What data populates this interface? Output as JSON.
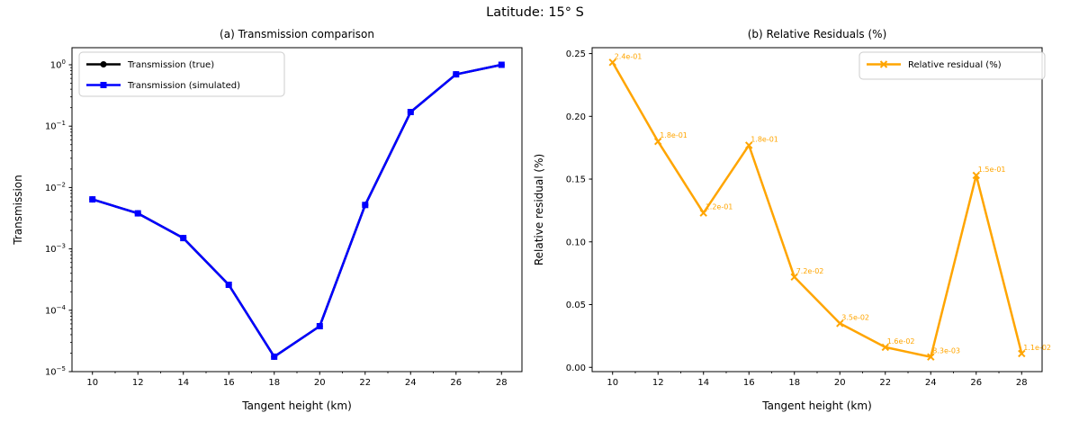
{
  "figure": {
    "suptitle": "Latitude: 15° S",
    "background_color": "#ffffff",
    "accent_blue": "#0000ff",
    "accent_orange": "#ffa500",
    "accent_black": "#000000"
  },
  "chart_data": [
    {
      "type": "line",
      "title": "(a) Transmission comparison",
      "xlabel": "Tangent height (km)",
      "ylabel": "Transmission",
      "x": [
        10,
        12,
        14,
        16,
        18,
        20,
        22,
        24,
        26,
        28
      ],
      "xticks": [
        10,
        12,
        14,
        16,
        18,
        20,
        22,
        24,
        26,
        28
      ],
      "xminorticks": [
        11,
        13,
        15,
        17,
        19,
        21,
        23,
        25,
        27
      ],
      "xlim": [
        9.1,
        28.9
      ],
      "yscale": "log",
      "ylim": [
        1e-05,
        1.9
      ],
      "ytick_exponents": [
        0,
        -1,
        -2,
        -3,
        -4,
        -5
      ],
      "grid": false,
      "legend_position": "upper-left",
      "series": [
        {
          "name": "Transmission (true)",
          "color": "#000000",
          "marker": "circle",
          "values": [
            0.0064,
            0.0038,
            0.0015,
            0.00026,
            1.75e-05,
            5.5e-05,
            0.0052,
            0.17,
            0.7,
            1.0
          ]
        },
        {
          "name": "Transmission (simulated)",
          "color": "#0000ff",
          "marker": "square",
          "values": [
            0.0064,
            0.0038,
            0.0015,
            0.00026,
            1.75e-05,
            5.5e-05,
            0.0052,
            0.17,
            0.7,
            1.0
          ]
        }
      ]
    },
    {
      "type": "line",
      "title": "(b) Relative Residuals (%)",
      "xlabel": "Tangent height (km)",
      "ylabel": "Relative residual (%)",
      "x": [
        10,
        12,
        14,
        16,
        18,
        20,
        22,
        24,
        26,
        28
      ],
      "xticks": [
        10,
        12,
        14,
        16,
        18,
        20,
        22,
        24,
        26,
        28
      ],
      "xminorticks": [
        11,
        13,
        15,
        17,
        19,
        21,
        23,
        25,
        27
      ],
      "xlim": [
        9.1,
        28.9
      ],
      "yscale": "linear",
      "ylim": [
        -0.0034,
        0.2547
      ],
      "yticks": [
        0.0,
        0.05,
        0.1,
        0.15,
        0.2,
        0.25
      ],
      "grid": false,
      "legend_position": "upper-right",
      "series": [
        {
          "name": "Relative residual (%)",
          "color": "#ffa500",
          "marker": "x",
          "values": [
            0.243,
            0.18,
            0.123,
            0.177,
            0.072,
            0.035,
            0.016,
            0.0083,
            0.153,
            0.011
          ],
          "annotations": [
            "2.4e-01",
            "1.8e-01",
            "1.2e-01",
            "1.8e-01",
            "7.2e-02",
            "3.5e-02",
            "1.6e-02",
            "8.3e-03",
            "1.5e-01",
            "1.1e-02"
          ]
        }
      ]
    }
  ]
}
